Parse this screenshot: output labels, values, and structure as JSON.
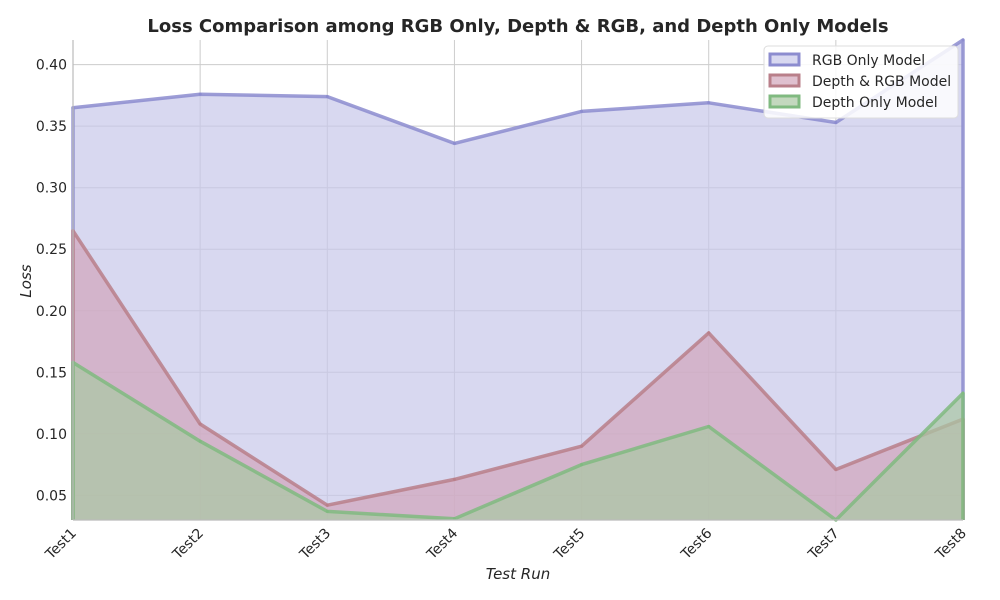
{
  "chart_data": {
    "type": "area",
    "title": "Loss Comparison among RGB Only, Depth & RGB, and Depth Only Models",
    "xlabel": "Test Run",
    "ylabel": "Loss",
    "categories": [
      "Test1",
      "Test2",
      "Test3",
      "Test4",
      "Test5",
      "Test6",
      "Test7",
      "Test8"
    ],
    "ylim": [
      0.03,
      0.42
    ],
    "yticks": [
      "0.05",
      "0.10",
      "0.15",
      "0.20",
      "0.25",
      "0.30",
      "0.35",
      "0.40"
    ],
    "grid": true,
    "legend_position": "top-right",
    "series": [
      {
        "name": "RGB Only Model",
        "values": [
          0.365,
          0.376,
          0.374,
          0.336,
          0.362,
          0.369,
          0.353,
          0.42
        ],
        "color": "#8c8ccf",
        "fill": "#c8c8ea"
      },
      {
        "name": "Depth & RGB Model",
        "values": [
          0.265,
          0.108,
          0.042,
          0.063,
          0.09,
          0.182,
          0.071,
          0.112
        ],
        "color": "#b97f8a",
        "fill": "#d2a5bb"
      },
      {
        "name": "Depth Only Model",
        "values": [
          0.158,
          0.094,
          0.037,
          0.031,
          0.075,
          0.106,
          0.03,
          0.133
        ],
        "color": "#80ba80",
        "fill": "#a9c7a2"
      }
    ]
  }
}
